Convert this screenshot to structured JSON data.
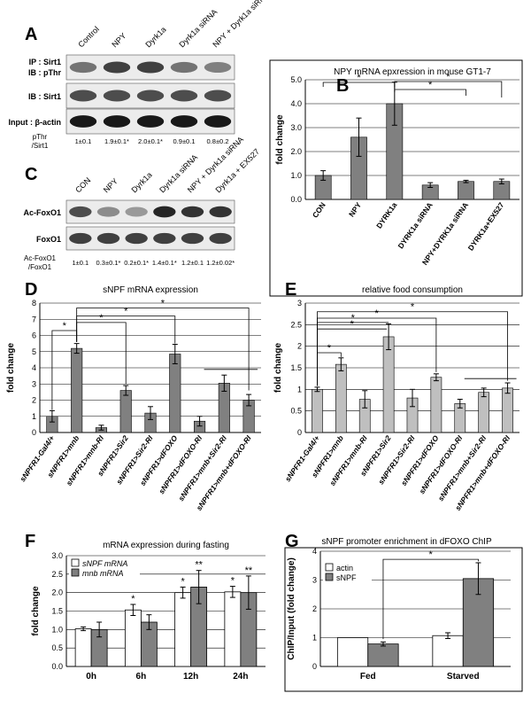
{
  "panels": {
    "A": {
      "label": "A",
      "lanes": [
        "Control",
        "NPY",
        "Dyrk1a",
        "Dyrk1a siRNA",
        "NPY + Dyrk1a siRNA"
      ],
      "rows": [
        {
          "label": "IP : Sirt1",
          "label2": "IB : pThr"
        },
        {
          "label": "IB : Sirt1"
        },
        {
          "label": "Input : β-actin"
        }
      ],
      "quant_label": [
        "pThr",
        "/Sirt1"
      ],
      "quant_values": [
        "1±0.1",
        "1.9±0.1*",
        "2.0±0.1*",
        "0.9±0.1",
        "0.8±0.2"
      ],
      "band_intensity": {
        "pThr": [
          0.55,
          0.75,
          0.75,
          0.55,
          0.5
        ],
        "Sirt1": [
          0.7,
          0.7,
          0.7,
          0.7,
          0.7
        ],
        "actin": [
          0.9,
          0.9,
          0.9,
          0.9,
          0.9
        ]
      }
    },
    "C": {
      "label": "C",
      "lanes": [
        "CON",
        "NPY",
        "Dyrk1a",
        "Dyrk1a siRNA",
        "NPY + Dyrk1a siRNA",
        "Dyrk1a + EX527"
      ],
      "rows": [
        {
          "label": "Ac-FoxO1"
        },
        {
          "label": "FoxO1"
        }
      ],
      "quant_label": [
        "Ac-FoxO1",
        "/FoxO1"
      ],
      "quant_values": [
        "1±0.1",
        "0.3±0.1*",
        "0.2±0.1*",
        "1.4±0.1*",
        "1.2±0.1",
        "1.2±0.02*"
      ],
      "band_intensity": {
        "Ac": [
          0.7,
          0.45,
          0.4,
          0.85,
          0.8,
          0.8
        ],
        "FoxO1": [
          0.75,
          0.75,
          0.75,
          0.75,
          0.75,
          0.75
        ]
      }
    },
    "B": {
      "label": "B"
    },
    "D": {
      "label": "D"
    },
    "E": {
      "label": "E"
    },
    "F": {
      "label": "F"
    },
    "G": {
      "label": "G"
    }
  },
  "chart_data": [
    {
      "id": "B",
      "type": "bar",
      "title": "NPY mRNA epxression in mouse GT1-7",
      "ylabel": "fold change",
      "ylim": [
        0,
        5
      ],
      "yticks": [
        "0.0",
        "1.0",
        "2.0",
        "3.0",
        "4.0",
        "5.0"
      ],
      "grid": true,
      "categories": [
        "CON",
        "NPY",
        "DYRK1a",
        "DYRK1a siRNA",
        "NPY+DYRK1a siRNA",
        "DYRK1a+EX527"
      ],
      "values": [
        1.0,
        2.6,
        4.0,
        0.6,
        0.75,
        0.75
      ],
      "errors": [
        0.2,
        0.8,
        0.9,
        0.1,
        0.05,
        0.1
      ],
      "bar_color": "#808080",
      "significance_marks": [
        "*",
        "*",
        "*"
      ]
    },
    {
      "id": "D",
      "type": "bar",
      "title": "sNPF mRNA expression",
      "ylabel": "fold change",
      "ylim": [
        0,
        8
      ],
      "yticks": [
        "0",
        "1",
        "2",
        "3",
        "4",
        "5",
        "6",
        "7",
        "8"
      ],
      "grid": true,
      "categories": [
        "sNPFR1-Gal4/+",
        "sNPFR1>mnb",
        "sNPFR1>mnb-RI",
        "sNPFR1>Sir2",
        "sNPFR1>Sir2-RI",
        "sNPFR1>dFOXO",
        "sNPFR1>dFOXO-RI",
        "sNPFR1>mnb+Sir2-RI",
        "sNPFR1>mnb+dFOXO-RI"
      ],
      "values": [
        1.0,
        5.2,
        0.3,
        2.6,
        1.2,
        4.85,
        0.7,
        3.05,
        2.0
      ],
      "errors": [
        0.35,
        0.3,
        0.15,
        0.3,
        0.4,
        0.6,
        0.3,
        0.5,
        0.35
      ],
      "bar_color": "#808080",
      "significance_marks": [
        "*",
        "*",
        "*",
        "*"
      ]
    },
    {
      "id": "E",
      "type": "bar",
      "title": "relative food consumption",
      "ylabel": "fold change",
      "ylim": [
        0,
        3
      ],
      "yticks": [
        "0",
        "0.5",
        "1",
        "1.5",
        "2",
        "2.5",
        "3"
      ],
      "grid": true,
      "categories": [
        "sNPFR1-Gal4/+",
        "sNPFR1>mnb",
        "sNPFR1>mnb-RI",
        "sNPFR1>Sir2",
        "sNPFR1>Sir2-RI",
        "sNPFR1>dFOXO",
        "sNPFR1>dFOXO-RI",
        "sNPFR1>mnb+Sir2-RI",
        "sNPFR1>mnb+dFOXO-RI"
      ],
      "values": [
        1.0,
        1.58,
        0.77,
        2.22,
        0.8,
        1.28,
        0.67,
        0.93,
        1.03
      ],
      "errors": [
        0.05,
        0.15,
        0.2,
        0.3,
        0.2,
        0.08,
        0.1,
        0.1,
        0.12
      ],
      "bar_color": "#bfbfbf",
      "significance_marks": [
        "*",
        "*",
        "*",
        "*",
        "*"
      ]
    },
    {
      "id": "F",
      "type": "bar",
      "title": "mRNA expression during fasting",
      "ylabel": "fold change",
      "ylim": [
        0,
        3.0
      ],
      "yticks": [
        "0.0",
        "0.5",
        "1.0",
        "1.5",
        "2.0",
        "2.5",
        "3.0"
      ],
      "grid": true,
      "categories": [
        "0h",
        "6h",
        "12h",
        "24h"
      ],
      "series": [
        {
          "name": "sNPF mRNA",
          "values": [
            1.02,
            1.53,
            2.0,
            2.02
          ],
          "errors": [
            0.05,
            0.15,
            0.15,
            0.15
          ],
          "color": "#ffffff",
          "marks": [
            "",
            "*",
            "*",
            "*"
          ]
        },
        {
          "name": "mnb mRNA",
          "values": [
            1.0,
            1.2,
            2.15,
            2.0
          ],
          "errors": [
            0.2,
            0.2,
            0.45,
            0.45
          ],
          "color": "#808080",
          "marks": [
            "",
            "",
            "**",
            "**"
          ]
        }
      ],
      "legend": "top-left"
    },
    {
      "id": "G",
      "type": "bar",
      "title": "sNPF promoter enrichment in dFOXO ChIP",
      "ylabel": "ChIP/Input (fold change)",
      "ylim": [
        0,
        4
      ],
      "yticks": [
        "0",
        "1",
        "2",
        "3",
        "4"
      ],
      "grid": true,
      "categories": [
        "Fed",
        "Starved"
      ],
      "series": [
        {
          "name": "actin",
          "values": [
            1.0,
            1.07
          ],
          "errors": [
            0.0,
            0.1
          ],
          "color": "#ffffff"
        },
        {
          "name": "sNPF",
          "values": [
            0.78,
            3.05
          ],
          "errors": [
            0.07,
            0.55
          ],
          "color": "#808080"
        }
      ],
      "legend": "top-left",
      "significance_marks": [
        "*"
      ]
    }
  ]
}
